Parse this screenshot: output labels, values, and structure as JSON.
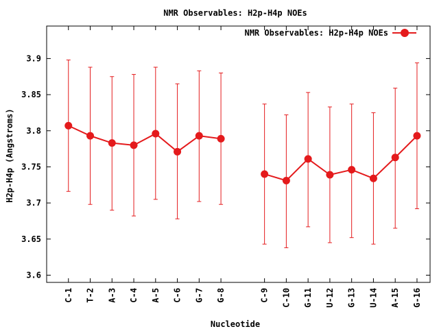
{
  "chart_data": {
    "type": "line",
    "title": "NMR Observables: H2p-H4p NOEs",
    "xlabel": "Nucleotide",
    "ylabel": "H2p-H4p (Angstroms)",
    "ylim": [
      3.59,
      3.945
    ],
    "yticks": [
      3.6,
      3.65,
      3.7,
      3.75,
      3.8,
      3.85,
      3.9
    ],
    "ytick_labels": [
      "3.6",
      "3.65",
      "3.7",
      "3.75",
      "3.8",
      "3.85",
      "3.9"
    ],
    "xlim": [
      0,
      17.6
    ],
    "grid": false,
    "legend": {
      "position": "top-right"
    },
    "series": [
      {
        "name": "NMR Observables: H2p-H4p NOEs",
        "color": "#e41a1c",
        "segments": [
          {
            "x": [
              1,
              2,
              3,
              4,
              5,
              6,
              7,
              8
            ],
            "categories": [
              "C-1",
              "T-2",
              "A-3",
              "C-4",
              "A-5",
              "C-6",
              "G-7",
              "G-8"
            ],
            "values": [
              3.807,
              3.793,
              3.783,
              3.78,
              3.796,
              3.771,
              3.793,
              3.789
            ],
            "error_low": [
              3.716,
              3.698,
              3.69,
              3.682,
              3.705,
              3.678,
              3.702,
              3.698
            ],
            "error_high": [
              3.898,
              3.888,
              3.875,
              3.878,
              3.888,
              3.865,
              3.883,
              3.88
            ]
          },
          {
            "x": [
              10,
              11,
              12,
              13,
              14,
              15,
              16,
              17
            ],
            "categories": [
              "C-9",
              "C-10",
              "G-11",
              "U-12",
              "G-13",
              "U-14",
              "A-15",
              "G-16"
            ],
            "values": [
              3.74,
              3.731,
              3.761,
              3.739,
              3.746,
              3.734,
              3.763,
              3.793
            ],
            "error_low": [
              3.643,
              3.638,
              3.667,
              3.645,
              3.652,
              3.643,
              3.665,
              3.692
            ],
            "error_high": [
              3.837,
              3.822,
              3.853,
              3.833,
              3.837,
              3.825,
              3.859,
              3.894
            ]
          }
        ]
      }
    ]
  }
}
